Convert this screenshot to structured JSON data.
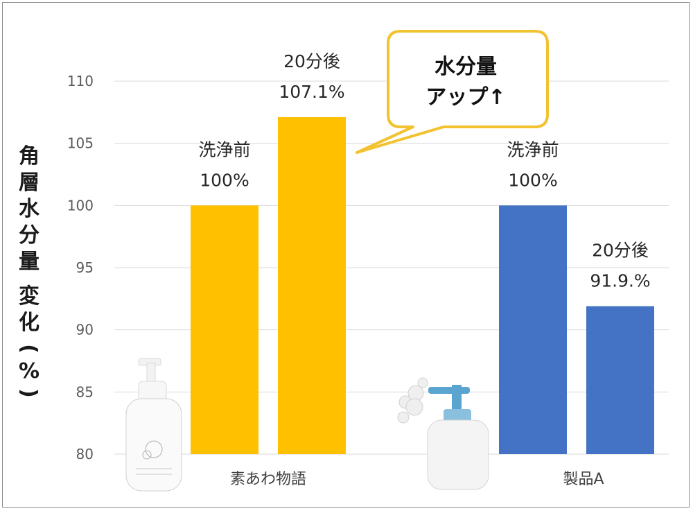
{
  "chart_data": {
    "type": "bar",
    "ylabel": "角層水分量 変化(%)",
    "ylim": [
      80,
      110
    ],
    "yticks": [
      80,
      85,
      90,
      95,
      100,
      105,
      110
    ],
    "grid": true,
    "categories": [
      "素あわ物語",
      "製品A"
    ],
    "bars": [
      {
        "category": "素あわ物語",
        "label_top": "洗浄前",
        "label_value": "100%",
        "value": 100,
        "color": "#FFC000"
      },
      {
        "category": "素あわ物語",
        "label_top": "20分後",
        "label_value": "107.1%",
        "value": 107.1,
        "color": "#FFC000"
      },
      {
        "category": "製品A",
        "label_top": "洗浄前",
        "label_value": "100%",
        "value": 100,
        "color": "#4472C4"
      },
      {
        "category": "製品A",
        "label_top": "20分後",
        "label_value": "91.9.%",
        "value": 91.9,
        "color": "#4472C4"
      }
    ],
    "callout": {
      "line1": "水分量",
      "line2": "アップ↑",
      "border_color": "#F2C230"
    }
  },
  "images": [
    {
      "name": "soap-bottle-product-icon",
      "text": "素あわ物語"
    },
    {
      "name": "pump-bottle-icon"
    }
  ]
}
